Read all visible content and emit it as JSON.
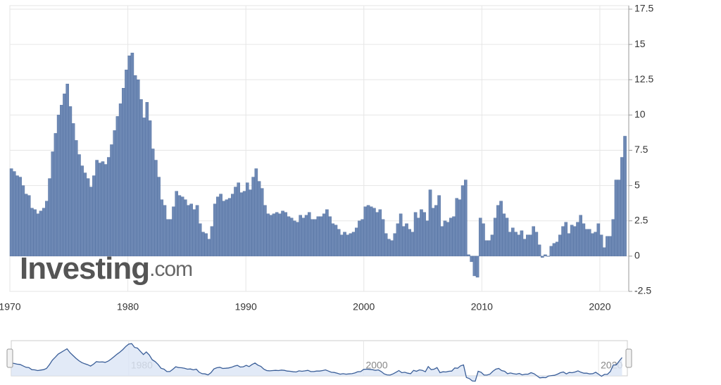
{
  "chart_data": {
    "type": "bar",
    "watermark": {
      "brand": "Investing",
      "suffix": ".com"
    },
    "color": "#6d88b4",
    "grid": true,
    "xlim": [
      1970,
      2022.45
    ],
    "xticks": [
      1970,
      1980,
      1990,
      2000,
      2010,
      2020
    ],
    "ylim": [
      -2.5,
      17.5
    ],
    "yticks": [
      -2.5,
      0,
      2.5,
      5,
      7.5,
      10,
      12.5,
      15,
      17.5
    ],
    "navigator_xticks": [
      1980,
      2000,
      2020
    ],
    "x": [
      1970,
      1970.25,
      1970.5,
      1970.75,
      1971,
      1971.25,
      1971.5,
      1971.75,
      1972,
      1972.25,
      1972.5,
      1972.75,
      1973,
      1973.25,
      1973.5,
      1973.75,
      1974,
      1974.25,
      1974.5,
      1974.75,
      1975,
      1975.25,
      1975.5,
      1975.75,
      1976,
      1976.25,
      1976.5,
      1976.75,
      1977,
      1977.25,
      1977.5,
      1977.75,
      1978,
      1978.25,
      1978.5,
      1978.75,
      1979,
      1979.25,
      1979.5,
      1979.75,
      1980,
      1980.25,
      1980.5,
      1980.75,
      1981,
      1981.25,
      1981.5,
      1981.75,
      1982,
      1982.25,
      1982.5,
      1982.75,
      1983,
      1983.25,
      1983.5,
      1983.75,
      1984,
      1984.25,
      1984.5,
      1984.75,
      1985,
      1985.25,
      1985.5,
      1985.75,
      1986,
      1986.25,
      1986.5,
      1986.75,
      1987,
      1987.25,
      1987.5,
      1987.75,
      1988,
      1988.25,
      1988.5,
      1988.75,
      1989,
      1989.25,
      1989.5,
      1989.75,
      1990,
      1990.25,
      1990.5,
      1990.75,
      1991,
      1991.25,
      1991.5,
      1991.75,
      1992,
      1992.25,
      1992.5,
      1992.75,
      1993,
      1993.25,
      1993.5,
      1993.75,
      1994,
      1994.25,
      1994.5,
      1994.75,
      1995,
      1995.25,
      1995.5,
      1995.75,
      1996,
      1996.25,
      1996.5,
      1996.75,
      1997,
      1997.25,
      1997.5,
      1997.75,
      1998,
      1998.25,
      1998.5,
      1998.75,
      1999,
      1999.25,
      1999.5,
      1999.75,
      2000,
      2000.25,
      2000.5,
      2000.75,
      2001,
      2001.25,
      2001.5,
      2001.75,
      2002,
      2002.25,
      2002.5,
      2002.75,
      2003,
      2003.25,
      2003.5,
      2003.75,
      2004,
      2004.25,
      2004.5,
      2004.75,
      2005,
      2005.25,
      2005.5,
      2005.75,
      2006,
      2006.25,
      2006.5,
      2006.75,
      2007,
      2007.25,
      2007.5,
      2007.75,
      2008,
      2008.25,
      2008.5,
      2008.75,
      2009,
      2009.25,
      2009.5,
      2009.75,
      2010,
      2010.25,
      2010.5,
      2010.75,
      2011,
      2011.25,
      2011.5,
      2011.75,
      2012,
      2012.25,
      2012.5,
      2012.75,
      2013,
      2013.25,
      2013.5,
      2013.75,
      2014,
      2014.25,
      2014.5,
      2014.75,
      2015,
      2015.25,
      2015.5,
      2015.75,
      2016,
      2016.25,
      2016.5,
      2016.75,
      2017,
      2017.25,
      2017.5,
      2017.75,
      2018,
      2018.25,
      2018.5,
      2018.75,
      2019,
      2019.25,
      2019.5,
      2019.75,
      2020,
      2020.25,
      2020.5,
      2020.75,
      2021,
      2021.25,
      2021.5,
      2021.75,
      2022
    ],
    "series": [
      {
        "color": "#6d88b4",
        "values": [
          6.2,
          6.0,
          5.7,
          5.6,
          5.0,
          4.4,
          4.3,
          3.4,
          3.3,
          3.0,
          3.2,
          3.4,
          3.9,
          5.5,
          7.4,
          8.7,
          10.0,
          10.7,
          11.5,
          12.2,
          10.6,
          9.4,
          8.2,
          7.2,
          6.4,
          5.9,
          5.5,
          4.9,
          5.7,
          6.8,
          6.6,
          6.7,
          6.5,
          7.0,
          7.9,
          8.9,
          9.9,
          10.8,
          11.9,
          13.2,
          14.2,
          14.4,
          12.8,
          12.5,
          11.1,
          9.8,
          10.9,
          9.6,
          7.6,
          6.8,
          5.6,
          4.0,
          3.6,
          2.6,
          2.6,
          3.5,
          4.6,
          4.3,
          4.2,
          4.0,
          3.6,
          3.7,
          3.3,
          3.6,
          2.3,
          1.7,
          1.6,
          1.2,
          2.1,
          3.7,
          4.2,
          4.4,
          3.9,
          4.0,
          4.1,
          4.4,
          4.9,
          5.2,
          4.5,
          4.6,
          5.2,
          4.7,
          5.6,
          6.2,
          5.3,
          4.8,
          3.6,
          3.0,
          2.9,
          3.0,
          3.1,
          3.0,
          3.2,
          3.1,
          2.8,
          2.7,
          2.5,
          2.4,
          2.9,
          2.7,
          2.9,
          3.1,
          2.6,
          2.6,
          2.8,
          2.8,
          3.0,
          3.3,
          2.8,
          2.3,
          2.2,
          1.9,
          1.5,
          1.7,
          1.5,
          1.6,
          1.7,
          2.0,
          2.5,
          2.6,
          3.5,
          3.6,
          3.5,
          3.4,
          3.1,
          3.3,
          2.6,
          1.6,
          1.2,
          1.1,
          1.6,
          2.3,
          3.0,
          2.1,
          2.3,
          1.9,
          1.7,
          3.1,
          2.7,
          3.3,
          3.1,
          2.5,
          4.7,
          3.4,
          3.6,
          4.3,
          2.1,
          2.5,
          2.4,
          2.7,
          2.8,
          4.1,
          4.0,
          5.0,
          5.4,
          0.1,
          -0.4,
          -1.4,
          -1.5,
          2.7,
          2.3,
          1.1,
          1.1,
          1.5,
          2.7,
          3.6,
          3.9,
          3.0,
          2.7,
          1.7,
          2.0,
          1.7,
          1.5,
          1.8,
          1.2,
          1.5,
          1.5,
          2.1,
          1.7,
          0.8,
          -0.1,
          0.1,
          0.0,
          0.7,
          0.9,
          1.0,
          1.5,
          2.1,
          2.4,
          1.6,
          2.2,
          2.1,
          2.4,
          2.9,
          2.3,
          1.9,
          1.9,
          1.6,
          1.7,
          2.3,
          1.5,
          0.6,
          1.4,
          1.4,
          2.6,
          5.4,
          5.4,
          7.0,
          8.5
        ]
      }
    ]
  }
}
